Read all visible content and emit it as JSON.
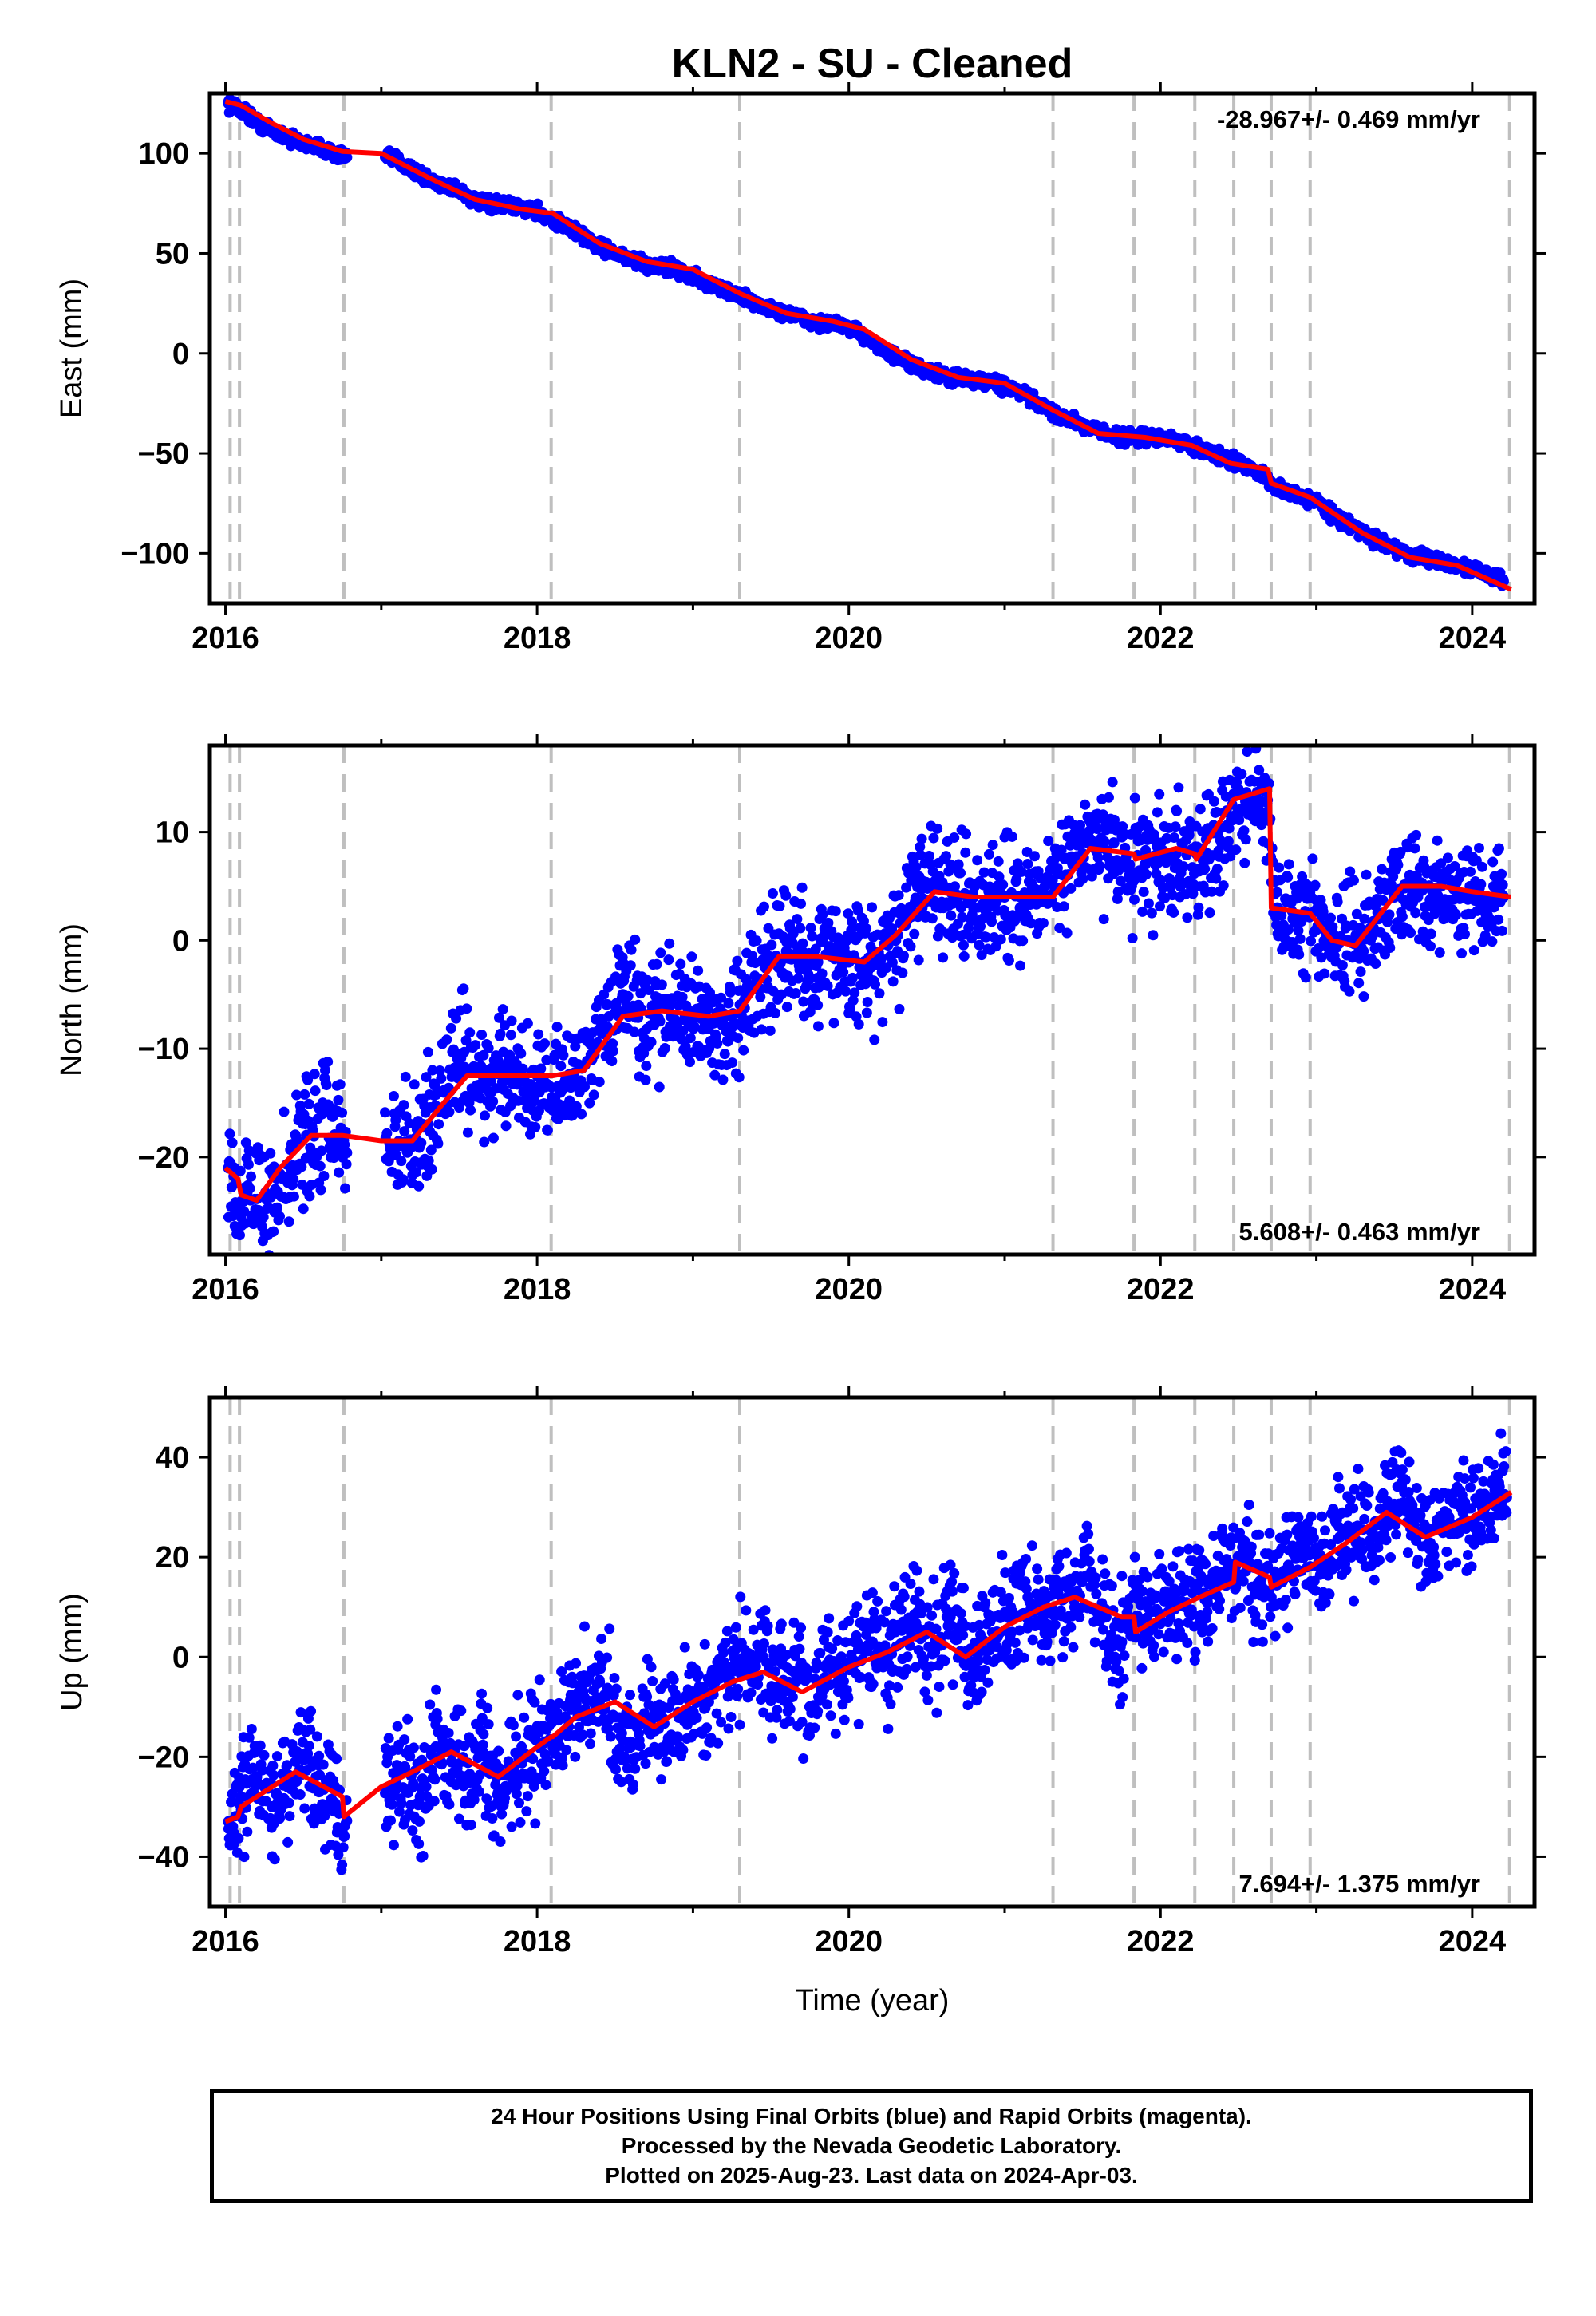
{
  "title": "KLN2  - SU - Cleaned",
  "colors": {
    "points": "#0000ff",
    "model": "#ff0000",
    "event_lines": "#bfbfbf",
    "frame": "#000000"
  },
  "event_lines_years": [
    2016.03,
    2016.09,
    2016.76,
    2018.09,
    2019.3,
    2021.31,
    2021.83,
    2022.22,
    2022.47,
    2022.71,
    2022.96,
    2024.24
  ],
  "footer": {
    "line1": "24 Hour Positions Using Final Orbits (blue) and Rapid Orbits (magenta).",
    "line2": "Processed by the Nevada Geodetic Laboratory.",
    "line3": "Plotted on 2025-Aug-23. Last data on 2024-Apr-03."
  },
  "chart_data": [
    {
      "type": "scatter",
      "ylabel": "East (mm)",
      "xlabel": "",
      "rate_label": "-28.967+/- 0.469 mm/yr",
      "rate_position": "top-right",
      "xlim": [
        2015.9,
        2024.4
      ],
      "ylim": [
        -125,
        130
      ],
      "xticks": [
        "2016",
        "2018",
        "2020",
        "2022",
        "2024"
      ],
      "yticks": [
        "100",
        "50",
        "0",
        "−50",
        "−100"
      ],
      "ytick_values": [
        100,
        50,
        0,
        -50,
        -100
      ],
      "model": {
        "x": [
          2016.0,
          2016.1,
          2016.3,
          2016.5,
          2016.75,
          2017.0,
          2017.3,
          2017.6,
          2017.9,
          2018.1,
          2018.4,
          2018.7,
          2019.0,
          2019.3,
          2019.6,
          2019.9,
          2020.1,
          2020.4,
          2020.7,
          2021.0,
          2021.3,
          2021.6,
          2021.9,
          2022.2,
          2022.45,
          2022.69,
          2022.71,
          2022.96,
          2023.3,
          2023.6,
          2023.9,
          2024.25
        ],
        "y": [
          126,
          124,
          115,
          107,
          101,
          100,
          88,
          77,
          72,
          70,
          55,
          46,
          42,
          30,
          20,
          16,
          12,
          -3,
          -12,
          -15,
          -28,
          -40,
          -42,
          -46,
          -55,
          -58,
          -65,
          -72,
          -90,
          -102,
          -106,
          -118
        ]
      },
      "points": {
        "x": [
          2016.02,
          2016.08,
          2016.15,
          2016.25,
          2016.35,
          2016.45,
          2016.55,
          2016.65,
          2016.72,
          2017.1,
          2017.2,
          2017.3,
          2017.4,
          2017.5,
          2017.6,
          2017.7,
          2017.8,
          2017.9,
          2018.0,
          2018.2,
          2018.3,
          2018.4,
          2018.5,
          2018.6,
          2018.7,
          2018.8,
          2018.9,
          2019.0,
          2019.1,
          2019.2,
          2019.35,
          2019.45,
          2019.55,
          2019.65,
          2019.75,
          2019.85,
          2019.95,
          2020.05,
          2020.15,
          2020.25,
          2020.35,
          2020.45,
          2020.55,
          2020.65,
          2020.75,
          2020.85,
          2020.95,
          2021.05,
          2021.15,
          2021.25,
          2021.35,
          2021.45,
          2021.55,
          2021.65,
          2021.75,
          2021.85,
          2021.95,
          2022.05,
          2022.15,
          2022.3,
          2022.4,
          2022.5,
          2022.6,
          2022.75,
          2022.85,
          2023.0,
          2023.1,
          2023.2,
          2023.3,
          2023.4,
          2023.5,
          2023.6,
          2023.7,
          2023.8,
          2023.9,
          2024.0,
          2024.1,
          2024.2
        ],
        "y": [
          125,
          123,
          119,
          113,
          110,
          106,
          104,
          102,
          99,
          97,
          92,
          87,
          84,
          82,
          76,
          74,
          74,
          73,
          71,
          63,
          58,
          54,
          50,
          47,
          44,
          44,
          42,
          39,
          34,
          32,
          27,
          23,
          21,
          19,
          16,
          15,
          14,
          11,
          6,
          0,
          -4,
          -7,
          -10,
          -12,
          -13,
          -14,
          -15,
          -18,
          -22,
          -27,
          -31,
          -34,
          -37,
          -40,
          -42,
          -42,
          -42,
          -43,
          -45,
          -49,
          -52,
          -55,
          -58,
          -68,
          -70,
          -74,
          -80,
          -85,
          -90,
          -94,
          -97,
          -101,
          -103,
          -104,
          -106,
          -108,
          -110,
          -114
        ]
      }
    },
    {
      "type": "scatter",
      "ylabel": "North (mm)",
      "xlabel": "",
      "rate_label": "5.608+/- 0.463 mm/yr",
      "rate_position": "bottom-right",
      "xlim": [
        2015.9,
        2024.4
      ],
      "ylim": [
        -29,
        18
      ],
      "xticks": [
        "2016",
        "2018",
        "2020",
        "2022",
        "2024"
      ],
      "yticks": [
        "10",
        "0",
        "−10",
        "−20"
      ],
      "ytick_values": [
        10,
        0,
        -10,
        -20
      ],
      "model": {
        "x": [
          2016.0,
          2016.08,
          2016.1,
          2016.2,
          2016.35,
          2016.55,
          2016.75,
          2017.0,
          2017.2,
          2017.4,
          2017.55,
          2017.8,
          2018.1,
          2018.3,
          2018.55,
          2018.8,
          2019.1,
          2019.3,
          2019.55,
          2019.8,
          2020.1,
          2020.3,
          2020.55,
          2020.8,
          2021.1,
          2021.31,
          2021.55,
          2021.83,
          2021.84,
          2022.1,
          2022.22,
          2022.23,
          2022.47,
          2022.7,
          2022.71,
          2022.96,
          2023.1,
          2023.25,
          2023.55,
          2023.8,
          2024.0,
          2024.25
        ],
        "y": [
          -21,
          -22,
          -23.5,
          -24,
          -21,
          -18,
          -18,
          -18.5,
          -18.5,
          -15,
          -12.5,
          -12.5,
          -12.5,
          -12,
          -7,
          -6.5,
          -7,
          -6.5,
          -1.5,
          -1.5,
          -2,
          0.5,
          4.5,
          4,
          4,
          4,
          8.5,
          8,
          7.5,
          8.5,
          8,
          7.5,
          13,
          14,
          3,
          2.5,
          0,
          -0.5,
          5,
          5,
          4.5,
          4
        ]
      },
      "points": {
        "x": [
          2016.02,
          2016.12,
          2016.22,
          2016.32,
          2016.42,
          2016.52,
          2016.62,
          2016.72,
          2017.1,
          2017.2,
          2017.3,
          2017.4,
          2017.5,
          2017.6,
          2017.7,
          2017.8,
          2017.9,
          2018.0,
          2018.15,
          2018.25,
          2018.35,
          2018.45,
          2018.55,
          2018.65,
          2018.75,
          2018.85,
          2018.95,
          2019.05,
          2019.15,
          2019.25,
          2019.4,
          2019.5,
          2019.6,
          2019.7,
          2019.8,
          2019.9,
          2020.0,
          2020.1,
          2020.2,
          2020.3,
          2020.4,
          2020.5,
          2020.6,
          2020.7,
          2020.8,
          2020.9,
          2021.0,
          2021.1,
          2021.2,
          2021.4,
          2021.5,
          2021.6,
          2021.7,
          2021.8,
          2021.9,
          2022.0,
          2022.1,
          2022.3,
          2022.4,
          2022.5,
          2022.6,
          2022.65,
          2022.75,
          2022.85,
          2023.0,
          2023.1,
          2023.2,
          2023.3,
          2023.4,
          2023.5,
          2023.6,
          2023.7,
          2023.8,
          2023.9,
          2024.0,
          2024.1,
          2024.2
        ],
        "y": [
          -21,
          -24,
          -25,
          -23,
          -21,
          -18,
          -16,
          -18,
          -19,
          -19,
          -17,
          -14,
          -11,
          -12,
          -13,
          -12,
          -13,
          -14,
          -14,
          -13,
          -11,
          -8,
          -5,
          -6,
          -7,
          -6,
          -7,
          -7,
          -7,
          -8,
          -4,
          -2,
          -1,
          -1,
          -2,
          -1,
          -2,
          -2,
          -2,
          0,
          3,
          5,
          5,
          4,
          4,
          4,
          4,
          3,
          4,
          6,
          8,
          9,
          9,
          7,
          7,
          8,
          8,
          8,
          9,
          12,
          13,
          14,
          3,
          2,
          1,
          0,
          0,
          -1,
          2,
          4,
          6,
          5,
          5,
          4,
          5,
          4,
          4
        ]
      }
    },
    {
      "type": "scatter",
      "ylabel": "Up (mm)",
      "xlabel": "Time (year)",
      "rate_label": "7.694+/- 1.375 mm/yr",
      "rate_position": "bottom-right",
      "xlim": [
        2015.9,
        2024.4
      ],
      "ylim": [
        -50,
        52
      ],
      "xticks": [
        "2016",
        "2018",
        "2020",
        "2022",
        "2024"
      ],
      "yticks": [
        "40",
        "20",
        "0",
        "−20",
        "−40"
      ],
      "ytick_values": [
        40,
        20,
        0,
        -20,
        -40
      ],
      "model": {
        "x": [
          2016.0,
          2016.08,
          2016.1,
          2016.25,
          2016.45,
          2016.75,
          2016.76,
          2017.0,
          2017.2,
          2017.45,
          2017.75,
          2018.0,
          2018.09,
          2018.1,
          2018.25,
          2018.5,
          2018.75,
          2019.0,
          2019.25,
          2019.45,
          2019.7,
          2020.0,
          2020.25,
          2020.5,
          2020.75,
          2021.0,
          2021.25,
          2021.45,
          2021.75,
          2021.83,
          2021.84,
          2022.05,
          2022.25,
          2022.47,
          2022.48,
          2022.7,
          2022.71,
          2022.96,
          2023.2,
          2023.45,
          2023.7,
          2024.0,
          2024.25
        ],
        "y": [
          -33,
          -32,
          -30,
          -27,
          -23,
          -28,
          -32,
          -26,
          -23,
          -19,
          -24,
          -18,
          -16,
          -16,
          -12,
          -9,
          -14,
          -9,
          -5,
          -3,
          -7,
          -2,
          1,
          5,
          0,
          6,
          10,
          12,
          8,
          8,
          5,
          9,
          12,
          15,
          19,
          16,
          14,
          18,
          23,
          29,
          24,
          28,
          33
        ]
      },
      "points": {
        "x": [
          2016.02,
          2016.1,
          2016.2,
          2016.3,
          2016.4,
          2016.5,
          2016.6,
          2016.7,
          2017.05,
          2017.15,
          2017.25,
          2017.35,
          2017.45,
          2017.55,
          2017.65,
          2017.75,
          2017.85,
          2017.95,
          2018.05,
          2018.2,
          2018.3,
          2018.4,
          2018.5,
          2018.6,
          2018.7,
          2018.8,
          2018.9,
          2019.0,
          2019.1,
          2019.2,
          2019.35,
          2019.45,
          2019.55,
          2019.65,
          2019.75,
          2019.85,
          2019.95,
          2020.05,
          2020.15,
          2020.25,
          2020.35,
          2020.45,
          2020.55,
          2020.65,
          2020.75,
          2020.85,
          2020.95,
          2021.05,
          2021.15,
          2021.25,
          2021.35,
          2021.45,
          2021.55,
          2021.65,
          2021.75,
          2021.85,
          2021.95,
          2022.05,
          2022.15,
          2022.3,
          2022.4,
          2022.55,
          2022.65,
          2022.8,
          2022.9,
          2023.05,
          2023.15,
          2023.25,
          2023.35,
          2023.45,
          2023.55,
          2023.65,
          2023.75,
          2023.85,
          2023.95,
          2024.05,
          2024.15,
          2024.22
        ],
        "y": [
          -33,
          -28,
          -24,
          -30,
          -26,
          -20,
          -27,
          -30,
          -26,
          -22,
          -28,
          -18,
          -21,
          -25,
          -19,
          -29,
          -23,
          -20,
          -17,
          -14,
          -8,
          -5,
          -12,
          -18,
          -13,
          -10,
          -16,
          -7,
          -9,
          -4,
          -1,
          0,
          -6,
          -3,
          -10,
          -2,
          -5,
          -1,
          3,
          0,
          7,
          4,
          1,
          8,
          0,
          2,
          5,
          9,
          12,
          6,
          14,
          10,
          16,
          8,
          3,
          12,
          6,
          9,
          14,
          11,
          17,
          20,
          14,
          16,
          21,
          18,
          24,
          26,
          22,
          30,
          35,
          25,
          22,
          28,
          31,
          26,
          34,
          32
        ]
      }
    }
  ]
}
